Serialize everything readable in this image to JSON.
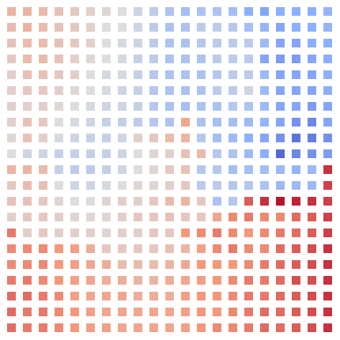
{
  "chart_data": {
    "type": "heatmap",
    "title": "",
    "xlabel": "",
    "ylabel": "",
    "grid": false,
    "legend": "none",
    "colormap": "coolwarm",
    "value_range": [
      -1,
      1
    ],
    "colors": {
      "low": "#3b4cc0",
      "mid": "#dddddd",
      "high": "#b40426",
      "background": "#ffffff"
    },
    "rows": 21,
    "cols": 21,
    "values": [
      [
        0.3,
        0.3,
        0.25,
        0.2,
        0.15,
        0.1,
        0.05,
        0.0,
        -0.1,
        -0.2,
        -0.3,
        -0.35,
        -0.3,
        -0.3,
        -0.35,
        -0.5,
        -0.55,
        -0.5,
        -0.5,
        -0.5,
        -0.45
      ],
      [
        0.25,
        0.3,
        0.25,
        0.2,
        0.15,
        0.1,
        0.0,
        0.0,
        -0.1,
        -0.2,
        -0.3,
        -0.3,
        -0.2,
        -0.2,
        -0.25,
        -0.35,
        -0.45,
        -0.55,
        -0.5,
        -0.5,
        -0.45
      ],
      [
        0.2,
        0.25,
        0.25,
        0.2,
        0.15,
        0.1,
        0.0,
        -0.05,
        -0.1,
        -0.2,
        -0.3,
        -0.3,
        -0.25,
        -0.2,
        -0.2,
        -0.2,
        -0.4,
        -0.55,
        -0.55,
        -0.5,
        -0.5
      ],
      [
        0.15,
        0.25,
        0.25,
        0.2,
        0.1,
        0.05,
        0.0,
        -0.05,
        -0.15,
        -0.2,
        -0.3,
        -0.3,
        -0.3,
        -0.2,
        -0.2,
        -0.2,
        -0.55,
        -0.6,
        -0.6,
        -0.55,
        -0.5
      ],
      [
        0.1,
        0.2,
        0.2,
        0.15,
        0.1,
        0.0,
        -0.05,
        -0.05,
        -0.15,
        -0.25,
        -0.3,
        -0.3,
        -0.3,
        -0.25,
        -0.2,
        -0.2,
        -0.4,
        -0.55,
        -0.55,
        -0.55,
        -0.5
      ],
      [
        0.1,
        0.15,
        0.15,
        0.1,
        0.05,
        0.0,
        -0.05,
        -0.1,
        -0.15,
        -0.25,
        -0.3,
        -0.3,
        -0.3,
        -0.2,
        -0.2,
        -0.1,
        -0.4,
        -0.55,
        -0.55,
        -0.55,
        -0.5
      ],
      [
        0.1,
        0.1,
        0.1,
        0.05,
        0.0,
        -0.05,
        -0.1,
        -0.1,
        -0.15,
        -0.25,
        -0.3,
        -0.35,
        -0.3,
        -0.3,
        -0.25,
        -0.3,
        -0.4,
        -0.55,
        -0.55,
        -0.6,
        -0.55
      ],
      [
        0.1,
        0.2,
        0.15,
        0.0,
        -0.05,
        -0.1,
        -0.15,
        -0.15,
        -0.2,
        -0.25,
        -0.3,
        0.4,
        -0.3,
        -0.35,
        -0.35,
        -0.4,
        -0.45,
        -0.55,
        -0.65,
        -0.7,
        -0.55
      ],
      [
        0.05,
        0.2,
        0.1,
        -0.05,
        -0.1,
        -0.15,
        -0.15,
        -0.1,
        0.1,
        0.15,
        0.25,
        0.3,
        -0.25,
        -0.35,
        -0.4,
        -0.5,
        -0.55,
        -0.65,
        -0.8,
        -0.75,
        -0.65
      ],
      [
        0.0,
        -0.1,
        -0.1,
        -0.15,
        -0.15,
        -0.15,
        -0.15,
        -0.1,
        0.0,
        0.05,
        0.1,
        0.2,
        0.25,
        -0.25,
        -0.3,
        -0.4,
        -0.5,
        -0.85,
        -0.7,
        -0.65,
        -0.6
      ],
      [
        0.3,
        0.3,
        0.25,
        -0.15,
        -0.2,
        -0.2,
        -0.15,
        -0.1,
        0.0,
        0.05,
        0.15,
        0.2,
        -0.25,
        -0.25,
        -0.35,
        -0.35,
        -0.35,
        -0.4,
        -0.45,
        -0.4,
        0.85
      ],
      [
        0.15,
        0.25,
        0.2,
        0.0,
        -0.1,
        -0.1,
        -0.05,
        0.0,
        0.05,
        0.05,
        0.1,
        0.15,
        -0.2,
        -0.2,
        -0.25,
        -0.25,
        -0.3,
        -0.4,
        -0.4,
        -0.4,
        0.8
      ],
      [
        0.2,
        0.2,
        0.15,
        0.05,
        0.0,
        0.0,
        0.05,
        0.1,
        0.1,
        0.15,
        0.25,
        0.3,
        0.15,
        -0.3,
        -0.25,
        0.7,
        0.85,
        0.95,
        0.9,
        0.85,
        0.8
      ],
      [
        0.1,
        0.15,
        0.15,
        0.1,
        0.05,
        0.05,
        0.05,
        0.1,
        0.15,
        0.15,
        0.2,
        0.15,
        0.15,
        0.4,
        0.55,
        0.6,
        0.55,
        0.55,
        0.65,
        0.7,
        0.8
      ],
      [
        0.6,
        0.1,
        0.15,
        0.1,
        0.1,
        0.1,
        0.05,
        0.1,
        0.1,
        0.15,
        0.15,
        0.5,
        0.55,
        0.6,
        0.55,
        0.5,
        0.55,
        0.6,
        0.65,
        0.7,
        0.8
      ],
      [
        0.55,
        0.55,
        0.55,
        0.5,
        0.45,
        0.35,
        0.15,
        0.15,
        0.15,
        0.15,
        0.2,
        0.3,
        0.45,
        0.55,
        0.6,
        0.55,
        0.55,
        0.65,
        0.7,
        0.75,
        0.85
      ],
      [
        0.55,
        0.55,
        0.55,
        0.5,
        0.45,
        0.4,
        0.35,
        0.25,
        0.25,
        0.25,
        0.3,
        0.4,
        0.5,
        0.5,
        0.5,
        0.55,
        0.6,
        0.65,
        0.7,
        0.75,
        0.85
      ],
      [
        0.6,
        0.6,
        0.55,
        0.5,
        0.45,
        0.4,
        0.35,
        0.35,
        0.3,
        0.3,
        0.35,
        0.4,
        0.45,
        0.5,
        0.55,
        0.6,
        0.6,
        0.65,
        0.75,
        0.75,
        0.85
      ],
      [
        0.65,
        0.65,
        0.6,
        0.55,
        0.45,
        0.4,
        0.4,
        0.4,
        0.35,
        0.35,
        0.35,
        0.45,
        0.5,
        0.5,
        0.55,
        0.6,
        0.6,
        0.65,
        0.7,
        0.75,
        0.85
      ],
      [
        0.65,
        0.6,
        0.6,
        0.55,
        0.5,
        0.45,
        0.4,
        0.4,
        0.4,
        0.4,
        0.4,
        0.45,
        0.5,
        0.5,
        0.55,
        0.6,
        0.65,
        0.65,
        0.7,
        0.75,
        0.85
      ],
      [
        0.65,
        0.6,
        0.6,
        0.55,
        0.5,
        0.45,
        0.45,
        0.4,
        0.4,
        0.4,
        0.4,
        0.45,
        0.5,
        0.55,
        0.55,
        0.6,
        0.65,
        0.65,
        0.7,
        0.75,
        0.85
      ]
    ]
  }
}
